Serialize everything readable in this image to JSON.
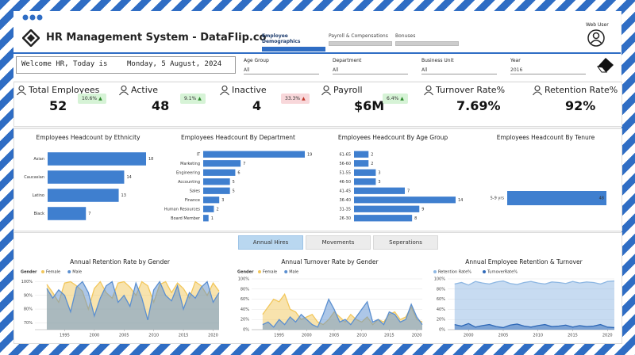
{
  "header": {
    "title": "HR Management System - DataFlip.co",
    "tabs": [
      "Employee Demographics",
      "Payroll & Compensations",
      "Bonuses"
    ],
    "user": "Web User"
  },
  "welcome": {
    "greeting": "Welcome HR, Today is",
    "date": "Monday, 5 August, 2024"
  },
  "filters": [
    {
      "label": "Age Group",
      "value": "All"
    },
    {
      "label": "Department",
      "value": "All"
    },
    {
      "label": "Business Unit",
      "value": "All"
    },
    {
      "label": "Year",
      "value": "2016"
    }
  ],
  "kpis": [
    {
      "label": "Total Employees",
      "value": "52",
      "change": "10.6%",
      "trend": "up"
    },
    {
      "label": "Active",
      "value": "48",
      "change": "9.1%",
      "trend": "up"
    },
    {
      "label": "Inactive",
      "value": "4",
      "change": "33.3%",
      "trend": "up-bad"
    },
    {
      "label": "Payroll",
      "value": "$6M",
      "change": "6.4%",
      "trend": "up"
    },
    {
      "label": "Turnover Rate%",
      "value": "7.69%"
    },
    {
      "label": "Retention Rate%",
      "value": "92%"
    }
  ],
  "buttons": [
    "Annual Hires",
    "Movements",
    "Seperations"
  ],
  "chart_data": [
    {
      "type": "hbar",
      "title": "Employees Headcount by Ethnicity",
      "color": "#3f7fcf",
      "categories": [
        "Asian",
        "Caucasian",
        "Latino",
        "Black"
      ],
      "values": [
        18,
        14,
        13,
        7
      ]
    },
    {
      "type": "hbar",
      "title": "Employees Headcount By Department",
      "color": "#3f7fcf",
      "categories": [
        "IT",
        "Marketing",
        "Engineering",
        "Accounting",
        "Sales",
        "Finance",
        "Human Resources",
        "Board Member"
      ],
      "values": [
        19,
        7,
        6,
        5,
        5,
        3,
        2,
        1
      ]
    },
    {
      "type": "hbar",
      "title": "Employees Headcount By Age Group",
      "color": "#3f7fcf",
      "categories": [
        "61-65",
        "56-60",
        "51-55",
        "46-50",
        "41-45",
        "36-40",
        "31-35",
        "26-30"
      ],
      "values": [
        2,
        2,
        3,
        3,
        7,
        14,
        9,
        8
      ]
    },
    {
      "type": "hbar",
      "title": "Employees Headcount By Tenure",
      "color": "#3f7fcf",
      "categories": [
        "5-9 yrs"
      ],
      "values": [
        48
      ]
    },
    {
      "type": "area",
      "title": "Annual Retention Rate by Gender",
      "legend_title": "Gender",
      "x": [
        1992,
        1993,
        1994,
        1995,
        1996,
        1997,
        1998,
        1999,
        2000,
        2001,
        2002,
        2003,
        2004,
        2005,
        2006,
        2007,
        2008,
        2009,
        2010,
        2011,
        2012,
        2013,
        2014,
        2015,
        2016,
        2017,
        2018,
        2019,
        2020,
        2021
      ],
      "series": [
        {
          "name": "Female",
          "color": "#f2c75c",
          "values": [
            98,
            92,
            85,
            99,
            100,
            97,
            93,
            80,
            95,
            100,
            92,
            88,
            99,
            100,
            96,
            90,
            100,
            97,
            85,
            98,
            100,
            92,
            99,
            95,
            88,
            100,
            97,
            90,
            99,
            93
          ]
        },
        {
          "name": "Male",
          "color": "#5b8fd0",
          "values": [
            95,
            88,
            94,
            90,
            78,
            96,
            100,
            92,
            75,
            88,
            97,
            100,
            85,
            90,
            82,
            99,
            88,
            72,
            94,
            100,
            90,
            86,
            97,
            80,
            92,
            88,
            96,
            100,
            85,
            92
          ]
        }
      ],
      "xlim": [
        1990,
        2021
      ],
      "xticks": [
        1995,
        2000,
        2005,
        2010,
        2015,
        2020
      ],
      "ylim": [
        65,
        102
      ],
      "yticks": [
        {
          "value": 70,
          "label": "70%"
        },
        {
          "value": 80,
          "label": "80%"
        },
        {
          "value": 90,
          "label": "90%"
        },
        {
          "value": 100,
          "label": "100%"
        }
      ]
    },
    {
      "type": "area",
      "title": "Annual Turnover Rate by Gender",
      "legend_title": "Gender",
      "x": [
        1992,
        1993,
        1994,
        1995,
        1996,
        1997,
        1998,
        1999,
        2000,
        2001,
        2002,
        2003,
        2004,
        2005,
        2006,
        2007,
        2008,
        2009,
        2010,
        2011,
        2012,
        2013,
        2014,
        2015,
        2016,
        2017,
        2018,
        2019,
        2020,
        2021
      ],
      "series": [
        {
          "name": "Female",
          "color": "#f2c75c",
          "values": [
            30,
            45,
            60,
            55,
            70,
            40,
            35,
            20,
            25,
            30,
            15,
            10,
            20,
            35,
            25,
            15,
            30,
            20,
            15,
            25,
            10,
            20,
            15,
            30,
            35,
            20,
            25,
            45,
            20,
            15
          ]
        },
        {
          "name": "Male",
          "color": "#5b8fd0",
          "values": [
            10,
            15,
            5,
            20,
            10,
            25,
            15,
            30,
            20,
            10,
            5,
            30,
            60,
            40,
            15,
            20,
            10,
            25,
            40,
            55,
            15,
            20,
            10,
            35,
            30,
            15,
            20,
            50,
            25,
            10
          ]
        }
      ],
      "xlim": [
        1990,
        2021
      ],
      "xticks": [
        1995,
        2000,
        2005,
        2010,
        2015,
        2020
      ],
      "ylim": [
        0,
        100
      ],
      "yticks": [
        {
          "value": 0,
          "label": "0%"
        },
        {
          "value": 20,
          "label": "20%"
        },
        {
          "value": 40,
          "label": "40%"
        },
        {
          "value": 60,
          "label": "60%"
        },
        {
          "value": 80,
          "label": "80%"
        },
        {
          "value": 100,
          "label": "100%"
        }
      ]
    },
    {
      "type": "area",
      "title": "Annual Employee Retention & Turnover",
      "x": [
        1998,
        1999,
        2000,
        2001,
        2002,
        2003,
        2004,
        2005,
        2006,
        2007,
        2008,
        2009,
        2010,
        2011,
        2012,
        2013,
        2014,
        2015,
        2016,
        2017,
        2018,
        2019,
        2020,
        2021
      ],
      "series": [
        {
          "name": "Retention Rate%",
          "color": "#8fb8e3",
          "values": [
            90,
            93,
            88,
            95,
            92,
            90,
            94,
            96,
            91,
            89,
            93,
            95,
            92,
            90,
            94,
            93,
            91,
            95,
            92,
            94,
            93,
            90,
            95,
            96
          ]
        },
        {
          "name": "TurnoverRate%",
          "color": "#2f69b8",
          "values": [
            10,
            7,
            12,
            5,
            8,
            10,
            6,
            4,
            9,
            11,
            7,
            5,
            8,
            10,
            6,
            7,
            9,
            5,
            8,
            6,
            7,
            10,
            5,
            4
          ]
        }
      ],
      "xlim": [
        1997,
        2021
      ],
      "xticks": [
        2000,
        2005,
        2010,
        2015,
        2020
      ],
      "ylim": [
        0,
        100
      ],
      "yticks": [
        {
          "value": 0,
          "label": "0%"
        },
        {
          "value": 20,
          "label": "20%"
        },
        {
          "value": 40,
          "label": "40%"
        },
        {
          "value": 60,
          "label": "60%"
        },
        {
          "value": 80,
          "label": "80%"
        },
        {
          "value": 100,
          "label": "100%"
        }
      ]
    }
  ]
}
